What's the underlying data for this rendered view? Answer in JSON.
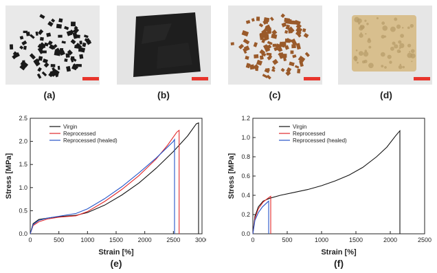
{
  "panels": {
    "a": "(a)",
    "b": "(b)",
    "c": "(c)",
    "d": "(d)",
    "e": "(e)",
    "f": "(f)"
  },
  "colors": {
    "virgin": "#111111",
    "reprocessed": "#e0282a",
    "healed": "#2454c8",
    "scale_bar": "#e8352c",
    "dark_sample": "#1a1a1a",
    "brown_sample": "#9a5a2a",
    "tan_sample": "#d8bf8e"
  },
  "chart_data": [
    {
      "type": "line",
      "xlabel": "Strain  [%]",
      "ylabel": "Stress  [MPa]",
      "xlim": [
        0,
        3000
      ],
      "ylim": [
        0,
        2.5
      ],
      "xticks": [
        "0",
        "500",
        "1000",
        "1500",
        "2000",
        "2500",
        "3000"
      ],
      "yticks": [
        "0.0",
        "0.5",
        "1.0",
        "1.5",
        "2.0",
        "2.5"
      ],
      "legend_position": "top-left",
      "series": [
        {
          "name": "Virgin",
          "color_key": "virgin",
          "x": [
            0,
            50,
            150,
            300,
            500,
            800,
            1000,
            1300,
            1600,
            1900,
            2200,
            2500,
            2750,
            2900,
            2940,
            2940
          ],
          "y": [
            0,
            0.22,
            0.31,
            0.34,
            0.37,
            0.4,
            0.46,
            0.62,
            0.84,
            1.1,
            1.42,
            1.78,
            2.12,
            2.38,
            2.4,
            0
          ]
        },
        {
          "name": "Reprocessed",
          "color_key": "reprocessed",
          "x": [
            0,
            50,
            150,
            300,
            500,
            800,
            1000,
            1300,
            1600,
            1900,
            2200,
            2400,
            2560,
            2600,
            2600
          ],
          "y": [
            0,
            0.18,
            0.26,
            0.32,
            0.36,
            0.39,
            0.48,
            0.7,
            0.96,
            1.26,
            1.62,
            1.92,
            2.2,
            2.24,
            0
          ]
        },
        {
          "name": "Reprocessed (healed)",
          "color_key": "healed",
          "x": [
            0,
            50,
            150,
            300,
            500,
            800,
            1000,
            1300,
            1600,
            1900,
            2200,
            2400,
            2500,
            2520,
            2520
          ],
          "y": [
            0,
            0.2,
            0.29,
            0.34,
            0.38,
            0.44,
            0.54,
            0.76,
            1.02,
            1.32,
            1.64,
            1.88,
            2.0,
            2.04,
            0
          ]
        }
      ]
    },
    {
      "type": "line",
      "xlabel": "Strain  [%]",
      "ylabel": "Stress  [MPa]",
      "xlim": [
        0,
        2500
      ],
      "ylim": [
        0,
        1.2
      ],
      "xticks": [
        "0",
        "500",
        "1000",
        "1500",
        "2000",
        "2500"
      ],
      "yticks": [
        "0.0",
        "0.2",
        "0.4",
        "0.6",
        "0.8",
        "1.0",
        "1.2"
      ],
      "legend_position": "top-left",
      "series": [
        {
          "name": "Virgin",
          "color_key": "virgin",
          "x": [
            0,
            30,
            80,
            150,
            250,
            400,
            600,
            800,
            1000,
            1200,
            1400,
            1600,
            1800,
            1950,
            2080,
            2140,
            2140
          ],
          "y": [
            0,
            0.18,
            0.28,
            0.34,
            0.37,
            0.4,
            0.43,
            0.46,
            0.5,
            0.55,
            0.61,
            0.69,
            0.8,
            0.9,
            1.02,
            1.07,
            0
          ]
        },
        {
          "name": "Reprocessed",
          "color_key": "reprocessed",
          "x": [
            0,
            30,
            80,
            150,
            220,
            260,
            260
          ],
          "y": [
            0,
            0.16,
            0.26,
            0.33,
            0.37,
            0.39,
            0
          ]
        },
        {
          "name": "Reprocessed (healed)",
          "color_key": "healed",
          "x": [
            0,
            30,
            80,
            140,
            200,
            230,
            230
          ],
          "y": [
            0,
            0.14,
            0.22,
            0.28,
            0.32,
            0.34,
            0
          ]
        }
      ]
    }
  ]
}
